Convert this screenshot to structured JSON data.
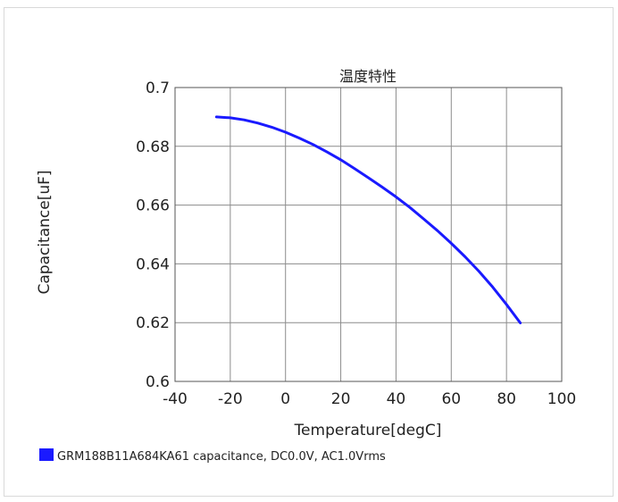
{
  "chart_data": {
    "type": "line",
    "title": "温度特性",
    "xlabel": "Temperature[degC]",
    "ylabel": "Capacitance[uF]",
    "xlim": [
      -40,
      100
    ],
    "ylim": [
      0.6,
      0.7
    ],
    "xticks": [
      -40,
      -20,
      0,
      20,
      40,
      60,
      80,
      100
    ],
    "yticks": [
      0.6,
      0.62,
      0.64,
      0.66,
      0.68,
      0.7
    ],
    "xtick_labels": [
      "-40",
      "-20",
      "0",
      "20",
      "40",
      "60",
      "80",
      "100"
    ],
    "ytick_labels": [
      "0.6",
      "0.62",
      "0.64",
      "0.66",
      "0.68",
      "0.7"
    ],
    "grid": true,
    "legend_position": "bottom-left",
    "series": [
      {
        "name": "GRM188B11A684KA61 capacitance, DC0.0V, AC1.0Vrms",
        "color": "#1a1aff",
        "x": [
          -25,
          -20,
          -15,
          -10,
          -5,
          0,
          5,
          10,
          15,
          20,
          25,
          30,
          35,
          40,
          45,
          50,
          55,
          60,
          65,
          70,
          75,
          80,
          85
        ],
        "y": [
          0.69,
          0.6897,
          0.689,
          0.6879,
          0.6865,
          0.6848,
          0.6828,
          0.6806,
          0.6781,
          0.6754,
          0.6724,
          0.6693,
          0.6661,
          0.6628,
          0.6592,
          0.6553,
          0.6513,
          0.647,
          0.6424,
          0.6375,
          0.6321,
          0.6262,
          0.6199
        ]
      }
    ]
  }
}
